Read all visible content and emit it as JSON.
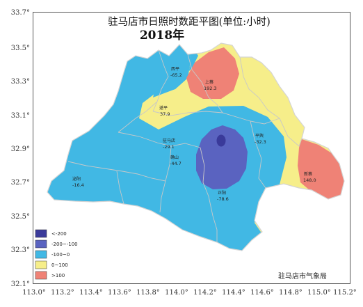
{
  "map": {
    "title": "驻马店市日照时数距平图(单位:小时)",
    "subtitle": "2018年",
    "credit": "驻马店市气象局",
    "colors": {
      "lt_neg200": "#3a3a9a",
      "neg200_neg100": "#5a63c0",
      "neg100_0": "#41b8e4",
      "zero_100": "#f6ee8a",
      "gt_100": "#ef8276",
      "boundary": "#c8c8c8",
      "frame": "#555555"
    },
    "y_ticks": [
      "33.7°",
      "33.5°",
      "33.3°",
      "33.1°",
      "32.9°",
      "32.7°",
      "32.5°",
      "32.3°",
      "32.1°"
    ],
    "x_ticks": [
      "113.0°",
      "113.2°",
      "113.4°",
      "113.6°",
      "113.8°",
      "114.0°",
      "114.2°",
      "114.4°",
      "114.6°",
      "114.8°",
      "115.0°",
      "115.2°"
    ],
    "legend": [
      "<-200",
      "-200~-100",
      "-100~0",
      "0~100",
      ">100"
    ],
    "counties": [
      {
        "name": "西平",
        "value": "-65.2"
      },
      {
        "name": "上蔡",
        "value": "192.3"
      },
      {
        "name": "遂平",
        "value": "37.9"
      },
      {
        "name": "平舆",
        "value": "-32.3"
      },
      {
        "name": "驻马店",
        "value": "-29.1"
      },
      {
        "name": "确山",
        "value": "-44.7"
      },
      {
        "name": "新蔡",
        "value": "148.0"
      },
      {
        "name": "泌阳",
        "value": "-16.4"
      },
      {
        "name": "正阳",
        "value": "-78.6"
      }
    ]
  }
}
